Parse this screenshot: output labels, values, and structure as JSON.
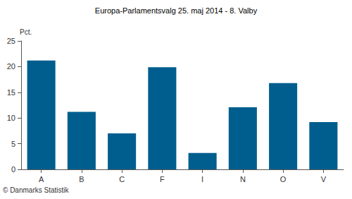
{
  "chart_data": {
    "type": "bar",
    "title": "Europa-Parlamentsvalg 25. maj 2014 - 8. Valby",
    "y_label": "Pct.",
    "categories": [
      "A",
      "B",
      "C",
      "F",
      "I",
      "N",
      "O",
      "V"
    ],
    "values": [
      21.2,
      11.2,
      7.0,
      19.9,
      3.2,
      12.1,
      16.8,
      9.2
    ],
    "color": "#005e8e",
    "ylim": [
      0,
      25
    ],
    "yticks": [
      0,
      5,
      10,
      15,
      20,
      25
    ],
    "grid": false,
    "annotations": [
      "© Danmarks Statistik"
    ]
  }
}
